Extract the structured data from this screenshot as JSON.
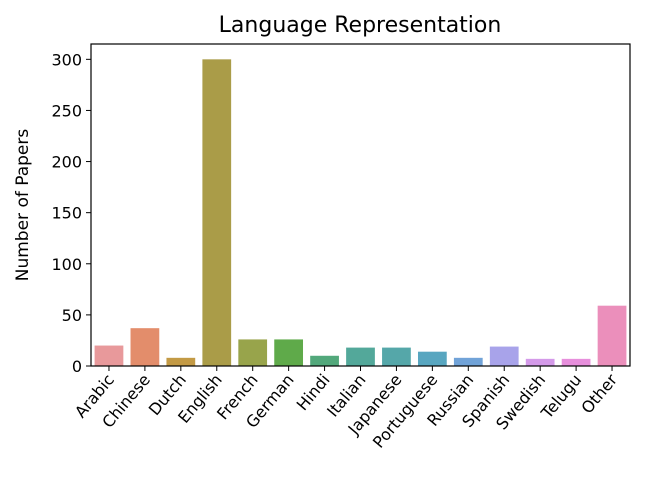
{
  "chart_data": {
    "type": "bar",
    "title": "Language Representation",
    "xlabel": "",
    "ylabel": "Number of Papers",
    "categories": [
      "Arabic",
      "Chinese",
      "Dutch",
      "English",
      "French",
      "German",
      "Hindi",
      "Italian",
      "Japanese",
      "Portuguese",
      "Russian",
      "Spanish",
      "Swedish",
      "Telugu",
      "Other"
    ],
    "values": [
      20,
      37,
      8,
      300,
      26,
      26,
      10,
      18,
      18,
      14,
      8,
      19,
      7,
      7,
      59
    ],
    "ylim": [
      0,
      315
    ],
    "yticks": [
      0,
      50,
      100,
      150,
      200,
      250,
      300
    ],
    "grid": false,
    "bar_colors": [
      "#e8999b",
      "#e38d6b",
      "#c39a45",
      "#aa9c48",
      "#98a44b",
      "#5faa4a",
      "#52a87b",
      "#53a89a",
      "#55a7a9",
      "#58a6c0",
      "#71a3d8",
      "#a8a3ea",
      "#d49ae9",
      "#e78fdc",
      "#eb8fbb"
    ]
  }
}
